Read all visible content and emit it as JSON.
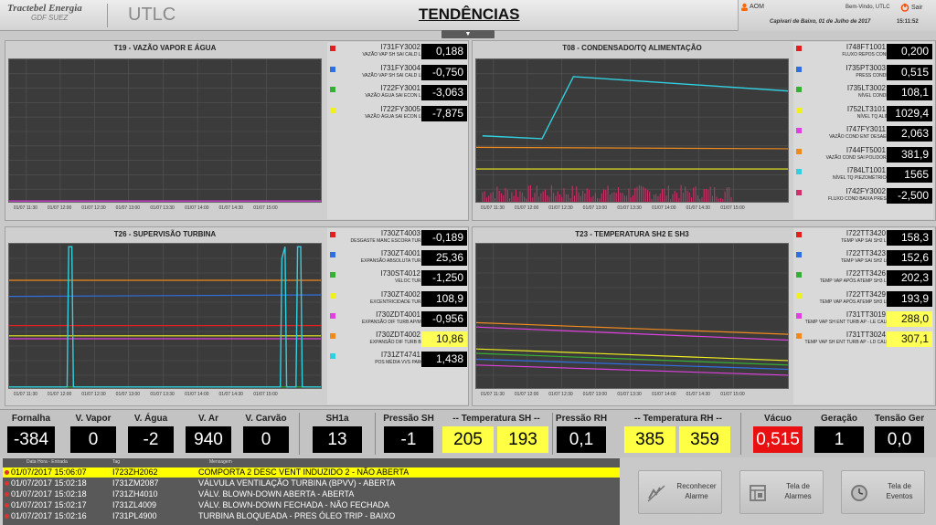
{
  "header": {
    "brand_line1": "Tractebel Energia",
    "brand_line2": "GDF SUEZ",
    "app": "UTLC",
    "title": "TENDÊNCIAS",
    "aom": "AOM",
    "welcome": "Bem-Vindo, UTLC",
    "exit": "Sair",
    "date": "Capivari de Baixo, 01 de Julho de 2017",
    "time": "15:11:52"
  },
  "toggle_icon": "chevron-down-icon",
  "colors": {
    "red": "#e02020",
    "blue": "#2f6fe0",
    "green": "#35b035",
    "yellow": "#f0f020",
    "magenta": "#e040e0",
    "orange": "#f08a1e",
    "cyan": "#30d0e0",
    "crimson": "#d0306a",
    "accent": "#ff6600"
  },
  "time_ticks": [
    "01/07 11:30",
    "01/07 12:00",
    "01/07 12:30",
    "01/07 13:00",
    "01/07 13:30",
    "01/07 14:00",
    "01/07 14:30",
    "01/07 15:00"
  ],
  "panels": [
    {
      "title": "T19 - VAZÃO VAPOR E ÁGUA",
      "items": [
        {
          "tag": "I731FY3002",
          "desc": "VAZÃO VAP SH SAI CALD LE",
          "value": "0,188",
          "color": "red"
        },
        {
          "tag": "I731FY3004",
          "desc": "VAZÃO VAP SH SAI CALD LD",
          "value": "-0,750",
          "color": "blue"
        },
        {
          "tag": "I722FY3001",
          "desc": "VAZÃO ÁGUA SAI ECON LE",
          "value": "-3,063",
          "color": "green"
        },
        {
          "tag": "I722FY3005",
          "desc": "VAZÃO ÁGUA SAI ECON LD",
          "value": "-7,875",
          "color": "yellow"
        }
      ]
    },
    {
      "title": "T08 - CONDENSADO/TQ ALIMENTAÇÃO",
      "items": [
        {
          "tag": "I748FT1001",
          "desc": "FLUXO REPOS COND",
          "value": "0,200",
          "color": "red"
        },
        {
          "tag": "I735PT3003",
          "desc": "PRESS CONDR",
          "value": "0,515",
          "color": "blue"
        },
        {
          "tag": "I735LT3002",
          "desc": "NÍVEL CONDR",
          "value": "108,1",
          "color": "green"
        },
        {
          "tag": "I752LT3101",
          "desc": "NÍVEL TQ ALIM",
          "value": "1029,4",
          "color": "yellow"
        },
        {
          "tag": "I747FY3011",
          "desc": "VAZÃO COND ENT DESAER",
          "value": "2,063",
          "color": "magenta"
        },
        {
          "tag": "I744FT5001",
          "desc": "VAZÃO COND SAI POLIDORA",
          "value": "381,9",
          "color": "orange"
        },
        {
          "tag": "I784LT1001",
          "desc": "NÍVEL TQ PIEZOMÉTRICO",
          "value": "1565",
          "color": "cyan"
        },
        {
          "tag": "I742FY3002",
          "desc": "FLUXO COND BAIXA PRESS",
          "value": "-2,500",
          "color": "crimson"
        }
      ]
    },
    {
      "title": "T26 - SUPERVISÃO TURBINA",
      "items": [
        {
          "tag": "I730ZT4003",
          "desc": "DESGASTE MANC ESCORA TURB",
          "value": "-0,189",
          "color": "red",
          "hl": false
        },
        {
          "tag": "I730ZT4001",
          "desc": "EXPANSÃO ABSOLUTA TURB",
          "value": "25,36",
          "color": "blue",
          "hl": false
        },
        {
          "tag": "I730ST4012",
          "desc": "VELOC TURB",
          "value": "-1,250",
          "color": "green",
          "hl": false
        },
        {
          "tag": "I730ZT4002",
          "desc": "EXCENTRICIDADE TURB",
          "value": "108,9",
          "color": "yellow",
          "hl": false
        },
        {
          "tag": "I730ZDT4001",
          "desc": "EXPANSÃO DIF TURB AP/MP",
          "value": "-0,956",
          "color": "magenta",
          "hl": false
        },
        {
          "tag": "I730ZDT4002",
          "desc": "EXPANSÃO DIF TURB BP",
          "value": "10,86",
          "color": "orange",
          "hl": true
        },
        {
          "tag": "I731ZT4741",
          "desc": "POS MÉDIA VVS PARC",
          "value": "1,438",
          "color": "cyan",
          "hl": false
        }
      ]
    },
    {
      "title": "T23 - TEMPERATURA SH2 E SH3",
      "items": [
        {
          "tag": "I722TT3420",
          "desc": "TEMP VAP SAI SH2 LE",
          "value": "158,3",
          "color": "red",
          "hl": false
        },
        {
          "tag": "I722TT3423",
          "desc": "TEMP VAP SAI SH2 LD",
          "value": "152,6",
          "color": "blue",
          "hl": false
        },
        {
          "tag": "I722TT3426",
          "desc": "TEMP VAP APÓS ATEMP SH3 LE",
          "value": "202,3",
          "color": "green",
          "hl": false
        },
        {
          "tag": "I722TT3429",
          "desc": "TEMP VAP APÓS ATEMP SH3 LD",
          "value": "193,9",
          "color": "yellow",
          "hl": false
        },
        {
          "tag": "I731TT3019",
          "desc": "TEMP VAP SH ENT TURB AP - LE CALD",
          "value": "288,0",
          "color": "magenta",
          "hl": true
        },
        {
          "tag": "I731TT3024",
          "desc": "TEMP VAP SH ENT TURB AP - LD CALD",
          "value": "307,1",
          "color": "orange",
          "hl": true
        }
      ]
    }
  ],
  "status": {
    "fornalha": {
      "label": "Fornalha",
      "value": "-384"
    },
    "vvapor": {
      "label": "V. Vapor",
      "value": "0"
    },
    "vagua": {
      "label": "V. Água",
      "value": "-2"
    },
    "var": {
      "label": "V. Ar",
      "value": "940"
    },
    "vcarvao": {
      "label": "V. Carvão",
      "value": "0"
    },
    "sh1a": {
      "label": "SH1a",
      "value": "13"
    },
    "pressao_sh": {
      "label": "Pressão SH",
      "value": "-1"
    },
    "temp_sh": {
      "label": "-- Temperatura SH --",
      "v1": "205",
      "v2": "193"
    },
    "pressao_rh": {
      "label": "Pressão RH",
      "value": "0,1"
    },
    "temp_rh": {
      "label": "-- Temperatura RH --",
      "v1": "385",
      "v2": "359"
    },
    "vacuo": {
      "label": "Vácuo",
      "value": "0,515"
    },
    "geracao": {
      "label": "Geração",
      "value": "1"
    },
    "tensao": {
      "label": "Tensão Ger",
      "value": "0,0"
    }
  },
  "alarms": {
    "headers": [
      "Data Hora - Entrada",
      "Tag",
      "Mensagem"
    ],
    "rows": [
      {
        "dt": "01/07/2017 15:06:07",
        "tag": "I723ZH2062",
        "msg": "COMPORTA 2 DESC VENT INDUZIDO 2 - NÃO ABERTA"
      },
      {
        "dt": "01/07/2017 15:02:18",
        "tag": "I731ZM2087",
        "msg": "VÁLVULA VENTILAÇÃO TURBINA (BPVV) - ABERTA"
      },
      {
        "dt": "01/07/2017 15:02:18",
        "tag": "I731ZH4010",
        "msg": "VÁLV. BLOWN-DOWN ABERTA - ABERTA"
      },
      {
        "dt": "01/07/2017 15:02:17",
        "tag": "I731ZL4009",
        "msg": "VÁLV. BLOWN-DOWN FECHADA - NÃO FECHADA"
      },
      {
        "dt": "01/07/2017 15:02:16",
        "tag": "I731PL4900",
        "msg": "TURBINA BLOQUEADA - PRES ÓLEO TRIP - BAIXO"
      }
    ]
  },
  "buttons": {
    "ack": {
      "label": "Reconhecer Alarme",
      "icon": "acknowledge-icon"
    },
    "alarms": {
      "label": "Tela de Alarmes",
      "icon": "alarm-list-icon"
    },
    "events": {
      "label": "Tela de Eventos",
      "icon": "clock-icon"
    }
  }
}
